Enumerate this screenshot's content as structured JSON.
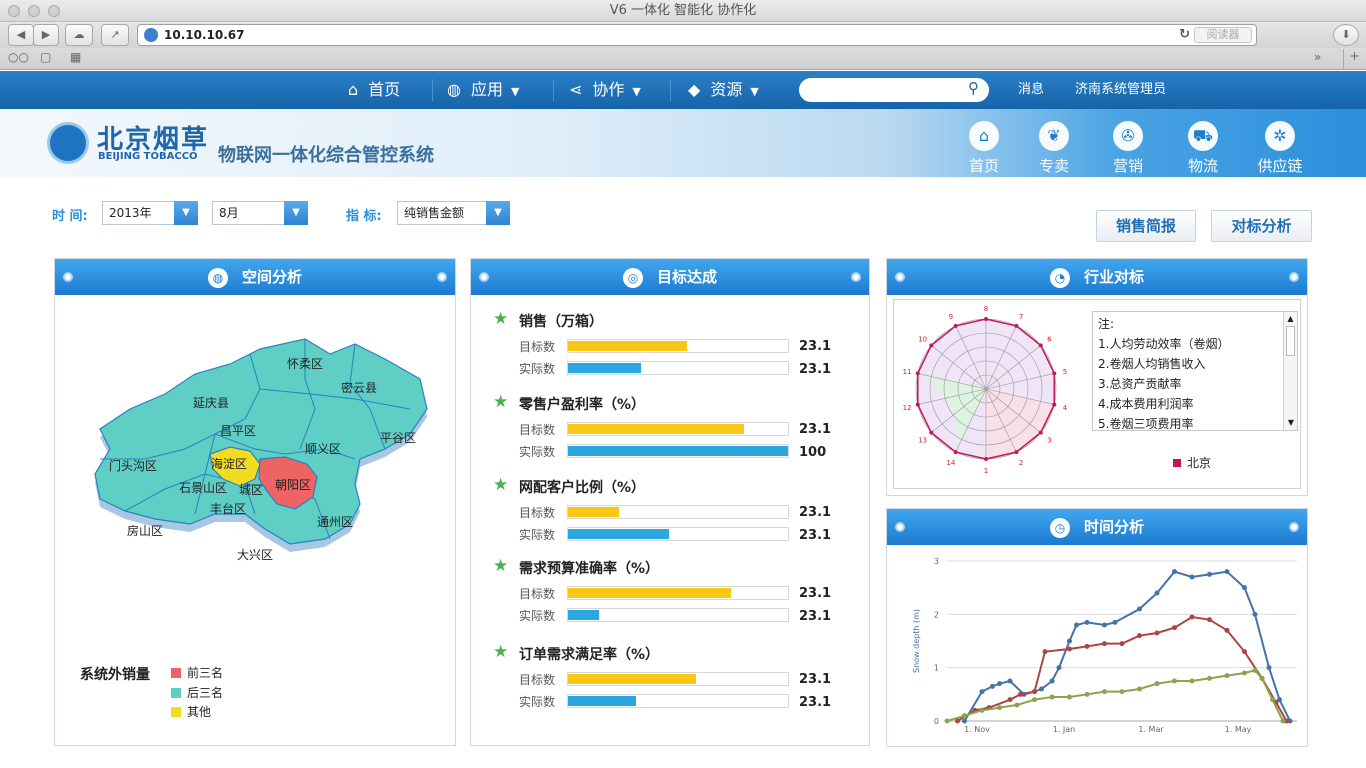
{
  "browser": {
    "window_title": "V6 一体化 智能化 协作化",
    "url": "10.10.10.67",
    "reader_label": "阅读器"
  },
  "nav": {
    "items": [
      {
        "label": "首页",
        "icon": "home-icon"
      },
      {
        "label": "应用",
        "icon": "globe-icon"
      },
      {
        "label": "协作",
        "icon": "share-icon"
      },
      {
        "label": "资源",
        "icon": "box-icon"
      }
    ],
    "search_placeholder": "",
    "messages_label": "消息",
    "user_label": "济南系统管理员"
  },
  "banner": {
    "logo_cn": "北京烟草",
    "logo_en": "BEIJING TOBACCO",
    "system_title": "物联网一体化综合管控系统",
    "items": [
      {
        "label": "首页",
        "icon": "home-icon"
      },
      {
        "label": "专卖",
        "icon": "leaf-icon"
      },
      {
        "label": "营销",
        "icon": "pinwheel-icon"
      },
      {
        "label": "物流",
        "icon": "truck-icon"
      },
      {
        "label": "供应链",
        "icon": "network-icon"
      }
    ]
  },
  "filters": {
    "time_label": "时  间:",
    "year_value": "2013年",
    "month_value": "8月",
    "metric_label": "指  标:",
    "metric_value": "纯销售金额",
    "btn_sales_report": "销售简报",
    "btn_benchmark": "对标分析"
  },
  "space_panel": {
    "title": "空间分析",
    "districts": [
      "怀柔区",
      "密云县",
      "延庆县",
      "昌平区",
      "顺义区",
      "平谷区",
      "门头沟区",
      "海淀区",
      "朝阳区",
      "石景山区",
      "城区",
      "丰台区",
      "通州区",
      "房山区",
      "大兴区"
    ],
    "legend_title": "系统外销量",
    "legend": [
      {
        "label": "前三名",
        "color": "#ee6363"
      },
      {
        "label": "后三名",
        "color": "#5fcfc6"
      },
      {
        "label": "其他",
        "color": "#f2dc1f"
      }
    ]
  },
  "goal_panel": {
    "title": "目标达成",
    "target_label": "目标数",
    "actual_label": "实际数",
    "target_color": "#f8c815",
    "actual_color": "#2aa7df",
    "items": [
      {
        "name": "销售（万箱）",
        "target": "23.1",
        "actual": "23.1",
        "target_fill": 0.54,
        "actual_fill": 0.33
      },
      {
        "name": "零售户盈利率（%）",
        "target": "23.1",
        "actual": "100",
        "target_fill": 0.8,
        "actual_fill": 1.0
      },
      {
        "name": "网配客户比例（%）",
        "target": "23.1",
        "actual": "23.1",
        "target_fill": 0.23,
        "actual_fill": 0.46
      },
      {
        "name": "需求预算准确率（%）",
        "target": "23.1",
        "actual": "23.1",
        "target_fill": 0.74,
        "actual_fill": 0.14
      },
      {
        "name": "订单需求满足率（%）",
        "target": "23.1",
        "actual": "23.1",
        "target_fill": 0.58,
        "actual_fill": 0.31
      }
    ]
  },
  "industry_panel": {
    "title": "行业对标",
    "notes_title": "注:",
    "notes": [
      "1.人均劳动效率（卷烟）",
      "2.卷烟人均销售收入",
      "3.总资产贡献率",
      "4.成本费用利润率",
      "5.卷烟三项费用率"
    ],
    "legend_series": "北京",
    "series_color": "#c2185b"
  },
  "time_panel": {
    "title": "时间分析"
  },
  "chart_data": [
    {
      "type": "radar",
      "axes": [
        "1",
        "2",
        "3",
        "4",
        "5",
        "6",
        "7",
        "8",
        "9",
        "10",
        "11",
        "12",
        "13",
        "14"
      ],
      "series": [
        {
          "name": "北京",
          "values": [
            1,
            1,
            1,
            1,
            1,
            1,
            1,
            1,
            1,
            1,
            1,
            1,
            1,
            1
          ]
        }
      ]
    },
    {
      "type": "line",
      "xlabel": "",
      "ylabel": "Snow depth (m)",
      "x_ticks": [
        "1. Nov",
        "1. Jan",
        "1. Mar",
        "1. May"
      ],
      "y_ticks": [
        "0",
        "1",
        "2",
        "3"
      ],
      "ylim": [
        0,
        3
      ],
      "series": [
        {
          "color": "#4572a7",
          "points": [
            [
              0.05,
              0
            ],
            [
              0.1,
              0.55
            ],
            [
              0.13,
              0.65
            ],
            [
              0.15,
              0.7
            ],
            [
              0.18,
              0.75
            ],
            [
              0.22,
              0.5
            ],
            [
              0.25,
              0.55
            ],
            [
              0.27,
              0.6
            ],
            [
              0.3,
              0.75
            ],
            [
              0.32,
              1.0
            ],
            [
              0.35,
              1.5
            ],
            [
              0.37,
              1.8
            ],
            [
              0.4,
              1.85
            ],
            [
              0.45,
              1.8
            ],
            [
              0.48,
              1.85
            ],
            [
              0.55,
              2.1
            ],
            [
              0.6,
              2.4
            ],
            [
              0.65,
              2.8
            ],
            [
              0.7,
              2.7
            ],
            [
              0.75,
              2.75
            ],
            [
              0.8,
              2.8
            ],
            [
              0.85,
              2.5
            ],
            [
              0.88,
              2.0
            ],
            [
              0.92,
              1.0
            ],
            [
              0.95,
              0.4
            ],
            [
              0.98,
              0
            ]
          ]
        },
        {
          "color": "#aa4643",
          "points": [
            [
              0.03,
              0
            ],
            [
              0.08,
              0.2
            ],
            [
              0.12,
              0.25
            ],
            [
              0.18,
              0.4
            ],
            [
              0.21,
              0.5
            ],
            [
              0.25,
              0.55
            ],
            [
              0.28,
              1.3
            ],
            [
              0.35,
              1.35
            ],
            [
              0.4,
              1.4
            ],
            [
              0.45,
              1.45
            ],
            [
              0.5,
              1.45
            ],
            [
              0.55,
              1.6
            ],
            [
              0.6,
              1.65
            ],
            [
              0.65,
              1.75
            ],
            [
              0.7,
              1.95
            ],
            [
              0.75,
              1.9
            ],
            [
              0.8,
              1.7
            ],
            [
              0.85,
              1.3
            ],
            [
              0.9,
              0.8
            ],
            [
              0.94,
              0.35
            ],
            [
              0.97,
              0
            ]
          ]
        },
        {
          "color": "#89a54e",
          "points": [
            [
              0.0,
              0
            ],
            [
              0.05,
              0.1
            ],
            [
              0.1,
              0.2
            ],
            [
              0.15,
              0.25
            ],
            [
              0.2,
              0.3
            ],
            [
              0.25,
              0.4
            ],
            [
              0.3,
              0.45
            ],
            [
              0.35,
              0.45
            ],
            [
              0.4,
              0.5
            ],
            [
              0.45,
              0.55
            ],
            [
              0.5,
              0.55
            ],
            [
              0.55,
              0.6
            ],
            [
              0.6,
              0.7
            ],
            [
              0.65,
              0.75
            ],
            [
              0.7,
              0.75
            ],
            [
              0.75,
              0.8
            ],
            [
              0.8,
              0.85
            ],
            [
              0.85,
              0.9
            ],
            [
              0.88,
              0.95
            ],
            [
              0.9,
              0.8
            ],
            [
              0.93,
              0.4
            ],
            [
              0.96,
              0
            ]
          ]
        }
      ]
    }
  ]
}
